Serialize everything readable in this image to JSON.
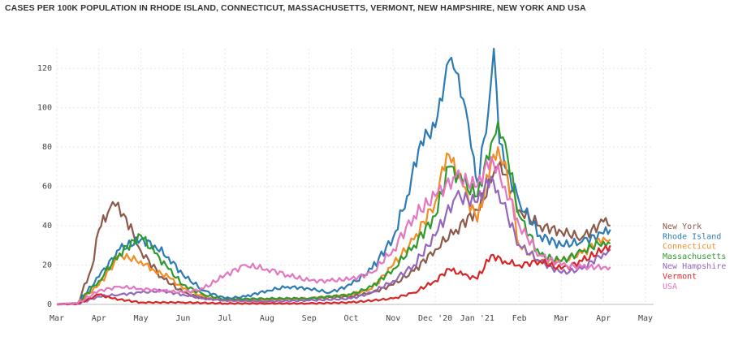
{
  "title": "CASES PER 100K POPULATION IN RHODE ISLAND, CONNECTICUT, MASSACHUSETTS, VERMONT, NEW HAMPSHIRE, NEW YORK AND USA",
  "chart_data": {
    "type": "line",
    "title": "CASES PER 100K POPULATION IN RHODE ISLAND, CONNECTICUT, MASSACHUSETTS, VERMONT, NEW HAMPSHIRE, NEW YORK AND USA",
    "xlabel": "",
    "ylabel": "",
    "x_ticks": [
      "Mar",
      "Apr",
      "May",
      "Jun",
      "Jul",
      "Aug",
      "Sep",
      "Oct",
      "Nov",
      "Dec '20",
      "Jan '21",
      "Feb",
      "Mar",
      "Apr",
      "May"
    ],
    "y_ticks": [
      0,
      20,
      40,
      60,
      80,
      100,
      120
    ],
    "ylim": [
      0,
      130
    ],
    "grid": true,
    "legend_position": "right",
    "series": [
      {
        "name": "New York",
        "color": "#8c5a4a",
        "points": [
          [
            "Mar",
            0
          ],
          [
            "Mar 15",
            0.5
          ],
          [
            "Mar 25",
            18
          ],
          [
            "Apr",
            38
          ],
          [
            "Apr 8",
            49
          ],
          [
            "Apr 12",
            50
          ],
          [
            "Apr 18",
            46
          ],
          [
            "Apr 25",
            36
          ],
          [
            "May",
            27
          ],
          [
            "May 15",
            14
          ],
          [
            "Jun",
            6
          ],
          [
            "Jun 15",
            3
          ],
          [
            "Jul",
            2.5
          ],
          [
            "Aug",
            2.5
          ],
          [
            "Sep",
            3
          ],
          [
            "Oct",
            4
          ],
          [
            "Oct 15",
            6
          ],
          [
            "Nov",
            10
          ],
          [
            "Nov 15",
            17
          ],
          [
            "Dec '20",
            28
          ],
          [
            "Dec 15",
            38
          ],
          [
            "Jan '21",
            48
          ],
          [
            "Jan 10",
            62
          ],
          [
            "Jan 15",
            70
          ],
          [
            "Jan 20",
            66
          ],
          [
            "Feb",
            48
          ],
          [
            "Feb 15",
            40
          ],
          [
            "Mar",
            37
          ],
          [
            "Mar 15",
            34
          ],
          [
            "Apr",
            42
          ],
          [
            "Apr 5",
            40
          ]
        ]
      },
      {
        "name": "Rhode Island",
        "color": "#2e7bb4",
        "points": [
          [
            "Mar",
            0
          ],
          [
            "Mar 15",
            0.5
          ],
          [
            "Apr",
            14
          ],
          [
            "Apr 15",
            28
          ],
          [
            "May",
            33
          ],
          [
            "May 10",
            30
          ],
          [
            "May 20",
            24
          ],
          [
            "Jun",
            15
          ],
          [
            "Jun 15",
            7
          ],
          [
            "Jul",
            3
          ],
          [
            "Jul 15",
            4
          ],
          [
            "Aug",
            7
          ],
          [
            "Aug 15",
            9
          ],
          [
            "Sep",
            8
          ],
          [
            "Sep 15",
            6
          ],
          [
            "Oct",
            10
          ],
          [
            "Oct 15",
            18
          ],
          [
            "Nov",
            34
          ],
          [
            "Nov 10",
            55
          ],
          [
            "Nov 20",
            83
          ],
          [
            "Dec '20",
            90
          ],
          [
            "Dec 10",
            124
          ],
          [
            "Dec 15",
            118
          ],
          [
            "Dec 22",
            100
          ],
          [
            "Dec 28",
            75
          ],
          [
            "Jan '21",
            62
          ],
          [
            "Jan 8",
            98
          ],
          [
            "Jan 12",
            130
          ],
          [
            "Jan 16",
            82
          ],
          [
            "Jan 22",
            68
          ],
          [
            "Feb",
            52
          ],
          [
            "Feb 15",
            35
          ],
          [
            "Mar",
            30
          ],
          [
            "Mar 15",
            32
          ],
          [
            "Apr",
            36
          ],
          [
            "Apr 5",
            38
          ]
        ]
      },
      {
        "name": "Connecticut",
        "color": "#f28d28",
        "points": [
          [
            "Mar",
            0
          ],
          [
            "Mar 15",
            0.5
          ],
          [
            "Apr",
            10
          ],
          [
            "Apr 15",
            25
          ],
          [
            "May",
            22
          ],
          [
            "May 10",
            17
          ],
          [
            "May 20",
            14
          ],
          [
            "Jun",
            8
          ],
          [
            "Jun 15",
            4
          ],
          [
            "Jul",
            2
          ],
          [
            "Aug",
            2
          ],
          [
            "Sep",
            3
          ],
          [
            "Oct",
            5
          ],
          [
            "Oct 15",
            8
          ],
          [
            "Nov",
            20
          ],
          [
            "Nov 15",
            33
          ],
          [
            "Dec '20",
            52
          ],
          [
            "Dec 5",
            70
          ],
          [
            "Dec 10",
            76
          ],
          [
            "Dec 20",
            60
          ],
          [
            "Jan '21",
            42
          ],
          [
            "Jan 10",
            72
          ],
          [
            "Jan 15",
            80
          ],
          [
            "Jan 22",
            65
          ],
          [
            "Feb",
            30
          ],
          [
            "Feb 15",
            22
          ],
          [
            "Mar",
            22
          ],
          [
            "Mar 15",
            26
          ],
          [
            "Apr",
            34
          ],
          [
            "Apr 5",
            33
          ]
        ]
      },
      {
        "name": "Massachusetts",
        "color": "#2f9a2f",
        "points": [
          [
            "Mar",
            0
          ],
          [
            "Mar 15",
            0.5
          ],
          [
            "Apr",
            12
          ],
          [
            "Apr 15",
            26
          ],
          [
            "May",
            35
          ],
          [
            "May 10",
            26
          ],
          [
            "May 20",
            18
          ],
          [
            "Jun",
            10
          ],
          [
            "Jun 15",
            5
          ],
          [
            "Jul",
            2.5
          ],
          [
            "Aug",
            3
          ],
          [
            "Sep",
            3
          ],
          [
            "Oct",
            5
          ],
          [
            "Oct 15",
            9
          ],
          [
            "Nov",
            18
          ],
          [
            "Nov 15",
            30
          ],
          [
            "Dec '20",
            45
          ],
          [
            "Dec 10",
            70
          ],
          [
            "Dec 20",
            62
          ],
          [
            "Jan '21",
            55
          ],
          [
            "Jan 10",
            82
          ],
          [
            "Jan 15",
            93
          ],
          [
            "Jan 22",
            75
          ],
          [
            "Feb",
            45
          ],
          [
            "Feb 15",
            25
          ],
          [
            "Mar",
            22
          ],
          [
            "Mar 15",
            27
          ],
          [
            "Apr",
            32
          ],
          [
            "Apr 5",
            31
          ]
        ]
      },
      {
        "name": "New Hampshire",
        "color": "#9467bd",
        "points": [
          [
            "Mar",
            0
          ],
          [
            "Mar 15",
            0.3
          ],
          [
            "Apr",
            4
          ],
          [
            "Apr 15",
            5
          ],
          [
            "May",
            6
          ],
          [
            "May 15",
            7
          ],
          [
            "Jun",
            5
          ],
          [
            "Jun 15",
            3
          ],
          [
            "Jul",
            2
          ],
          [
            "Aug",
            1.5
          ],
          [
            "Sep",
            2
          ],
          [
            "Oct",
            3
          ],
          [
            "Oct 15",
            6
          ],
          [
            "Nov",
            12
          ],
          [
            "Nov 15",
            20
          ],
          [
            "Dec '20",
            35
          ],
          [
            "Dec 15",
            55
          ],
          [
            "Jan '21",
            52
          ],
          [
            "Jan 10",
            65
          ],
          [
            "Jan 15",
            58
          ],
          [
            "Jan 22",
            45
          ],
          [
            "Feb",
            30
          ],
          [
            "Feb 15",
            22
          ],
          [
            "Mar",
            16
          ],
          [
            "Mar 15",
            18
          ],
          [
            "Apr",
            26
          ],
          [
            "Apr 5",
            28
          ]
        ]
      },
      {
        "name": "Vermont",
        "color": "#d62728",
        "points": [
          [
            "Mar",
            0
          ],
          [
            "Mar 15",
            0.3
          ],
          [
            "Apr",
            5
          ],
          [
            "Apr 10",
            3
          ],
          [
            "May",
            1
          ],
          [
            "Jun",
            1
          ],
          [
            "Jul",
            0.5
          ],
          [
            "Aug",
            0.5
          ],
          [
            "Sep",
            0.5
          ],
          [
            "Oct",
            1
          ],
          [
            "Nov",
            3
          ],
          [
            "Nov 15",
            6
          ],
          [
            "Dec '20",
            12
          ],
          [
            "Dec 10",
            18
          ],
          [
            "Dec 20",
            15
          ],
          [
            "Jan '21",
            13
          ],
          [
            "Jan 10",
            25
          ],
          [
            "Jan 20",
            22
          ],
          [
            "Feb",
            20
          ],
          [
            "Feb 15",
            22
          ],
          [
            "Mar",
            18
          ],
          [
            "Mar 15",
            22
          ],
          [
            "Apr",
            28
          ],
          [
            "Apr 5",
            30
          ]
        ]
      },
      {
        "name": "USA",
        "color": "#e377c2",
        "points": [
          [
            "Mar",
            0
          ],
          [
            "Mar 15",
            0.5
          ],
          [
            "Apr",
            7
          ],
          [
            "Apr 15",
            9
          ],
          [
            "May",
            8
          ],
          [
            "May 15",
            7
          ],
          [
            "Jun",
            6
          ],
          [
            "Jun 15",
            8
          ],
          [
            "Jul",
            15
          ],
          [
            "Jul 15",
            20
          ],
          [
            "Aug",
            18
          ],
          [
            "Aug 15",
            15
          ],
          [
            "Sep",
            12
          ],
          [
            "Sep 15",
            12
          ],
          [
            "Oct",
            13
          ],
          [
            "Oct 15",
            16
          ],
          [
            "Nov",
            28
          ],
          [
            "Nov 15",
            45
          ],
          [
            "Dec '20",
            55
          ],
          [
            "Dec 15",
            65
          ],
          [
            "Jan '21",
            60
          ],
          [
            "Jan 10",
            75
          ],
          [
            "Jan 20",
            60
          ],
          [
            "Feb",
            40
          ],
          [
            "Feb 15",
            25
          ],
          [
            "Mar",
            20
          ],
          [
            "Mar 15",
            19
          ],
          [
            "Apr",
            19
          ],
          [
            "Apr 5",
            19
          ]
        ]
      }
    ]
  }
}
